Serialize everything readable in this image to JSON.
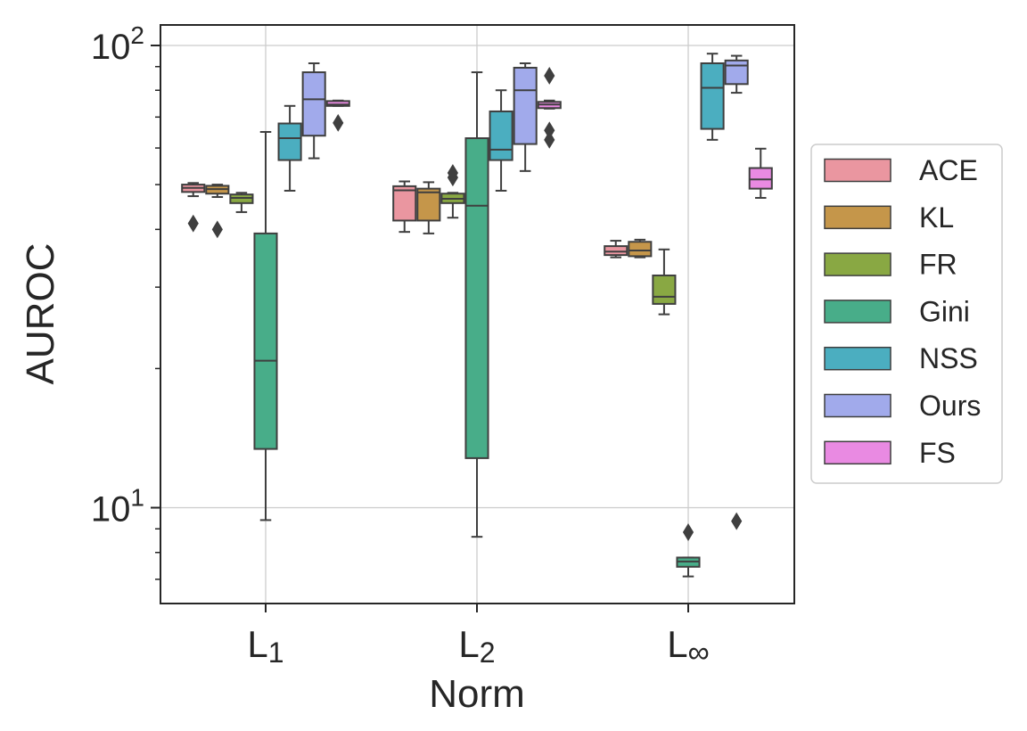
{
  "chart_data": {
    "type": "boxplot",
    "title": "",
    "xlabel": "Norm",
    "ylabel": "AUROC",
    "yscale": "log",
    "ylim": [
      6.1,
      120
    ],
    "y_ticks": [
      {
        "value": 10,
        "base": "10",
        "exp": "1"
      },
      {
        "value": 100,
        "base": "10",
        "exp": "2"
      }
    ],
    "categories": [
      {
        "base": "L",
        "sub": "1"
      },
      {
        "base": "L",
        "sub": "2"
      },
      {
        "base": "L",
        "sub": "∞"
      }
    ],
    "legend_position": "right",
    "series": [
      {
        "name": "ACE",
        "color": "#ea96a0",
        "boxes": [
          {
            "whislo": 47.2,
            "q1": 48.2,
            "med": 49.2,
            "q3": 50.0,
            "whishi": 50.4,
            "fliers": [
              41.2
            ]
          },
          {
            "whislo": 39.5,
            "q1": 41.8,
            "med": 48.6,
            "q3": 49.6,
            "whishi": 50.8,
            "fliers": []
          },
          {
            "whislo": 34.8,
            "q1": 35.2,
            "med": 35.8,
            "q3": 36.8,
            "whishi": 37.8,
            "fliers": []
          }
        ]
      },
      {
        "name": "KL",
        "color": "#c5964a",
        "boxes": [
          {
            "whislo": 47.0,
            "q1": 47.8,
            "med": 48.9,
            "q3": 49.7,
            "whishi": 50.0,
            "fliers": [
              40.0
            ]
          },
          {
            "whislo": 39.2,
            "q1": 41.8,
            "med": 48.1,
            "q3": 49.0,
            "whishi": 50.6,
            "fliers": []
          },
          {
            "whislo": 34.8,
            "q1": 35.0,
            "med": 36.0,
            "q3": 37.6,
            "whishi": 38.0,
            "fliers": []
          }
        ]
      },
      {
        "name": "FR",
        "color": "#89a843",
        "boxes": [
          {
            "whislo": 43.6,
            "q1": 45.6,
            "med": 46.8,
            "q3": 47.6,
            "whishi": 48.0,
            "fliers": []
          },
          {
            "whislo": 42.4,
            "q1": 45.6,
            "med": 46.6,
            "q3": 47.8,
            "whishi": 48.0,
            "fliers": [
              51.8,
              53.0
            ]
          },
          {
            "whislo": 26.2,
            "q1": 27.6,
            "med": 28.6,
            "q3": 31.8,
            "whishi": 36.2,
            "fliers": []
          }
        ]
      },
      {
        "name": "Gini",
        "color": "#48ad89",
        "boxes": [
          {
            "whislo": 9.4,
            "q1": 13.4,
            "med": 20.8,
            "q3": 39.2,
            "whishi": 65.0,
            "fliers": []
          },
          {
            "whislo": 8.65,
            "q1": 12.8,
            "med": 45.0,
            "q3": 63.0,
            "whishi": 87.5,
            "fliers": []
          },
          {
            "whislo": 7.1,
            "q1": 7.45,
            "med": 7.65,
            "q3": 7.8,
            "whishi": 7.8,
            "fliers": [
              8.85
            ]
          }
        ]
      },
      {
        "name": "NSS",
        "color": "#4baec0",
        "boxes": [
          {
            "whislo": 48.5,
            "q1": 56.5,
            "med": 63.0,
            "q3": 67.8,
            "whishi": 74.0,
            "fliers": []
          },
          {
            "whislo": 48.5,
            "q1": 56.5,
            "med": 59.5,
            "q3": 72.0,
            "whishi": 80.0,
            "fliers": []
          },
          {
            "whislo": 62.5,
            "q1": 66.0,
            "med": 81.0,
            "q3": 91.5,
            "whishi": 96.0,
            "fliers": []
          }
        ]
      },
      {
        "name": "Ours",
        "color": "#a1aaeb",
        "boxes": [
          {
            "whislo": 57.0,
            "q1": 63.8,
            "med": 76.5,
            "q3": 87.5,
            "whishi": 91.5,
            "fliers": []
          },
          {
            "whislo": 53.5,
            "q1": 61.2,
            "med": 80.0,
            "q3": 89.5,
            "whishi": 91.5,
            "fliers": []
          },
          {
            "whislo": 79.0,
            "q1": 82.5,
            "med": 90.5,
            "q3": 92.8,
            "whishi": 95.0,
            "fliers": [
              9.35
            ]
          }
        ]
      },
      {
        "name": "FS",
        "color": "#e98ae2",
        "boxes": [
          {
            "whislo": 74.0,
            "q1": 74.0,
            "med": 74.5,
            "q3": 75.8,
            "whishi": 76.0,
            "fliers": [
              68.0
            ]
          },
          {
            "whislo": 73.0,
            "q1": 73.2,
            "med": 74.5,
            "q3": 75.5,
            "whishi": 76.0,
            "fliers": [
              62.5,
              65.5,
              86.0
            ]
          },
          {
            "whislo": 46.8,
            "q1": 49.0,
            "med": 51.3,
            "q3": 54.3,
            "whishi": 59.8,
            "fliers": []
          }
        ]
      }
    ]
  }
}
